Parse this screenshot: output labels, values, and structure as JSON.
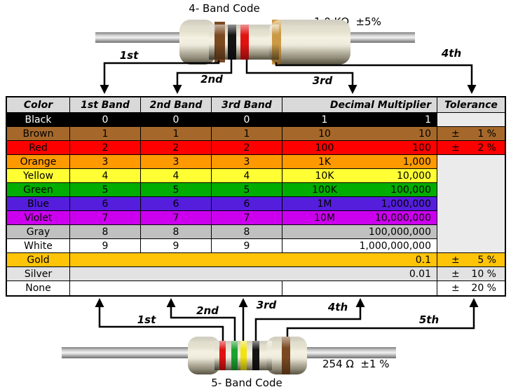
{
  "top_diagram": {
    "title": "4- Band Code",
    "value_label": "1.0 KΩ  ±5%",
    "arrow_labels": [
      "1st",
      "2nd",
      "3rd",
      "4th"
    ],
    "bands": [
      {
        "name": "brown",
        "hex": "#7B4A21"
      },
      {
        "name": "black",
        "hex": "#141414"
      },
      {
        "name": "red",
        "hex": "#E01212"
      },
      {
        "name": "gold",
        "hex": "#CC9A45"
      }
    ]
  },
  "table": {
    "headers": [
      "Color",
      "1st Band",
      "2nd Band",
      "3rd Band",
      "Decimal Multiplier",
      "Tolerance"
    ],
    "header_bg": "#D9D9D9",
    "empty_tolerance_bg": "#EBEBEB",
    "rows": [
      {
        "name": "Black",
        "type": "normal",
        "bg": "#000000",
        "fg": "#FFFFFF",
        "bands": [
          "0",
          "0",
          "0"
        ],
        "mult_prefix": "1",
        "mult_value": "1",
        "tol": null
      },
      {
        "name": "Brown",
        "type": "normal",
        "bg": "#A5682A",
        "bands": [
          "1",
          "1",
          "1"
        ],
        "mult_prefix": "10",
        "mult_value": "10",
        "tol": {
          "sign": "±",
          "value": "1 %"
        }
      },
      {
        "name": "Red",
        "type": "normal",
        "bg": "#FF0000",
        "bands": [
          "2",
          "2",
          "2"
        ],
        "mult_prefix": "100",
        "mult_value": "100",
        "tol": {
          "sign": "±",
          "value": "2 %"
        }
      },
      {
        "name": "Orange",
        "type": "normal",
        "bg": "#FF9900",
        "bands": [
          "3",
          "3",
          "3"
        ],
        "mult_prefix": "1K",
        "mult_value": "1,000",
        "tol": null
      },
      {
        "name": "Yellow",
        "type": "normal",
        "bg": "#FFFF33",
        "bands": [
          "4",
          "4",
          "4"
        ],
        "mult_prefix": "10K",
        "mult_value": "10,000",
        "tol": null
      },
      {
        "name": "Green",
        "type": "normal",
        "bg": "#00AD00",
        "bands": [
          "5",
          "5",
          "5"
        ],
        "mult_prefix": "100K",
        "mult_value": "100,000",
        "tol": null
      },
      {
        "name": "Blue",
        "type": "normal",
        "bg": "#551EDC",
        "bands": [
          "6",
          "6",
          "6"
        ],
        "mult_prefix": "1M",
        "mult_value": "1,000,000",
        "tol": null
      },
      {
        "name": "Violet",
        "type": "normal",
        "bg": "#CC00EE",
        "bands": [
          "7",
          "7",
          "7"
        ],
        "mult_prefix": "10M",
        "mult_value": "10,000,000",
        "tol": null
      },
      {
        "name": "Gray",
        "type": "normal",
        "bg": "#C0C0C0",
        "bands": [
          "8",
          "8",
          "8"
        ],
        "mult_prefix": "",
        "mult_value": "100,000,000",
        "tol": null
      },
      {
        "name": "White",
        "type": "normal",
        "bg": "#FFFFFF",
        "bands": [
          "9",
          "9",
          "9"
        ],
        "mult_prefix": "",
        "mult_value": "1,000,000,000",
        "tol": null
      },
      {
        "name": "Gold",
        "type": "merged",
        "bg": "#FFC408",
        "merged_value": "0.1",
        "tol": {
          "sign": "±",
          "value": "5 %"
        }
      },
      {
        "name": "Silver",
        "type": "merged",
        "bg": "#E2E2E2",
        "merged_value": "0.01",
        "tol": {
          "sign": "±",
          "value": "10 %"
        }
      },
      {
        "name": "None",
        "type": "none",
        "bg": "#FFFFFF",
        "merged_value": "",
        "mult_value": "",
        "tol": {
          "sign": "±",
          "value": "20 %"
        }
      }
    ]
  },
  "bottom_diagram": {
    "title": "5- Band Code",
    "value_label": "254 Ω  ±1 %",
    "arrow_labels": [
      "1st",
      "2nd",
      "3rd",
      "4th",
      "5th"
    ],
    "bands": [
      {
        "name": "red",
        "hex": "#E01212"
      },
      {
        "name": "green",
        "hex": "#1CA32F"
      },
      {
        "name": "yellow",
        "hex": "#F2E410"
      },
      {
        "name": "black",
        "hex": "#141414"
      },
      {
        "name": "brown",
        "hex": "#7B4A21"
      }
    ]
  }
}
